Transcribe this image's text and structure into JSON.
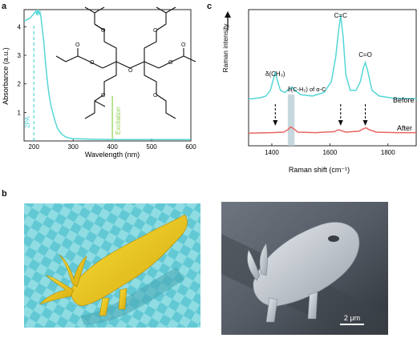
{
  "panels": {
    "a": "a",
    "b": "b",
    "c": "c"
  },
  "colors": {
    "absorbance": "#55d6d6",
    "excitation": "#8fd14f",
    "before": "#55d6d6",
    "after": "#e8635f",
    "highlight": "#b9cdd6"
  },
  "chart_data": [
    {
      "type": "line",
      "xlabel": "Wavelength (nm)",
      "ylabel": "Absorbance (a.u.)",
      "xlim": [
        175,
        600
      ],
      "ylim": [
        0,
        4.6
      ],
      "xticks": [
        200,
        300,
        400,
        500,
        600
      ],
      "yticks": [
        1,
        2,
        3,
        4
      ],
      "series": [
        {
          "x": [
            175,
            190,
            200,
            205,
            208,
            210,
            213,
            215,
            218,
            220,
            225,
            230,
            235,
            240,
            245,
            250,
            255,
            260,
            270,
            280,
            290,
            300,
            350,
            400,
            450,
            500,
            550,
            600
          ],
          "y": [
            4.2,
            4.3,
            4.45,
            4.55,
            4.4,
            4.6,
            4.45,
            4.55,
            4.35,
            4.1,
            3.5,
            2.7,
            2.0,
            1.5,
            1.15,
            0.9,
            0.65,
            0.45,
            0.25,
            0.15,
            0.1,
            0.08,
            0.06,
            0.05,
            0.05,
            0.05,
            0.05,
            0.05
          ]
        }
      ],
      "annotations": [
        {
          "label": "2PA",
          "x": 200
        },
        {
          "label": "Excitation",
          "x": 400
        }
      ]
    },
    {
      "type": "line",
      "xlabel": "Raman shift (cm⁻¹)",
      "ylabel": "Raman intensity",
      "xlim": [
        1320,
        1900
      ],
      "xticks": [
        1400,
        1600,
        1800
      ],
      "series": [
        {
          "name": "Before",
          "x": [
            1320,
            1360,
            1380,
            1395,
            1405,
            1412,
            1420,
            1430,
            1445,
            1460,
            1470,
            1480,
            1500,
            1540,
            1580,
            1605,
            1620,
            1630,
            1637,
            1645,
            1655,
            1670,
            1690,
            1705,
            1715,
            1722,
            1730,
            1745,
            1770,
            1820,
            1900
          ],
          "y": [
            0.15,
            0.18,
            0.22,
            0.35,
            0.6,
            0.75,
            0.55,
            0.35,
            0.3,
            0.38,
            0.42,
            0.35,
            0.25,
            0.22,
            0.3,
            0.55,
            1.1,
            1.7,
            2.05,
            1.6,
            0.7,
            0.35,
            0.35,
            0.55,
            0.85,
            0.98,
            0.8,
            0.35,
            0.22,
            0.17,
            0.16
          ]
        },
        {
          "name": "After",
          "x": [
            1320,
            1400,
            1440,
            1455,
            1465,
            1475,
            1490,
            1550,
            1615,
            1630,
            1640,
            1655,
            1700,
            1715,
            1725,
            1735,
            1760,
            1830,
            1900
          ],
          "y": [
            0.03,
            0.04,
            0.05,
            0.1,
            0.16,
            0.12,
            0.05,
            0.04,
            0.06,
            0.1,
            0.08,
            0.05,
            0.07,
            0.12,
            0.14,
            0.1,
            0.05,
            0.04,
            0.04
          ]
        }
      ],
      "peaks": [
        {
          "label": "δ(CH₃)",
          "x": 1412
        },
        {
          "label": "δ(C-H₂) of α-C",
          "x": 1465
        },
        {
          "label": "C=C",
          "x": 1637
        },
        {
          "label": "C=O",
          "x": 1722
        }
      ]
    }
  ],
  "panel_b": {
    "scale_bar": "2 μm"
  }
}
